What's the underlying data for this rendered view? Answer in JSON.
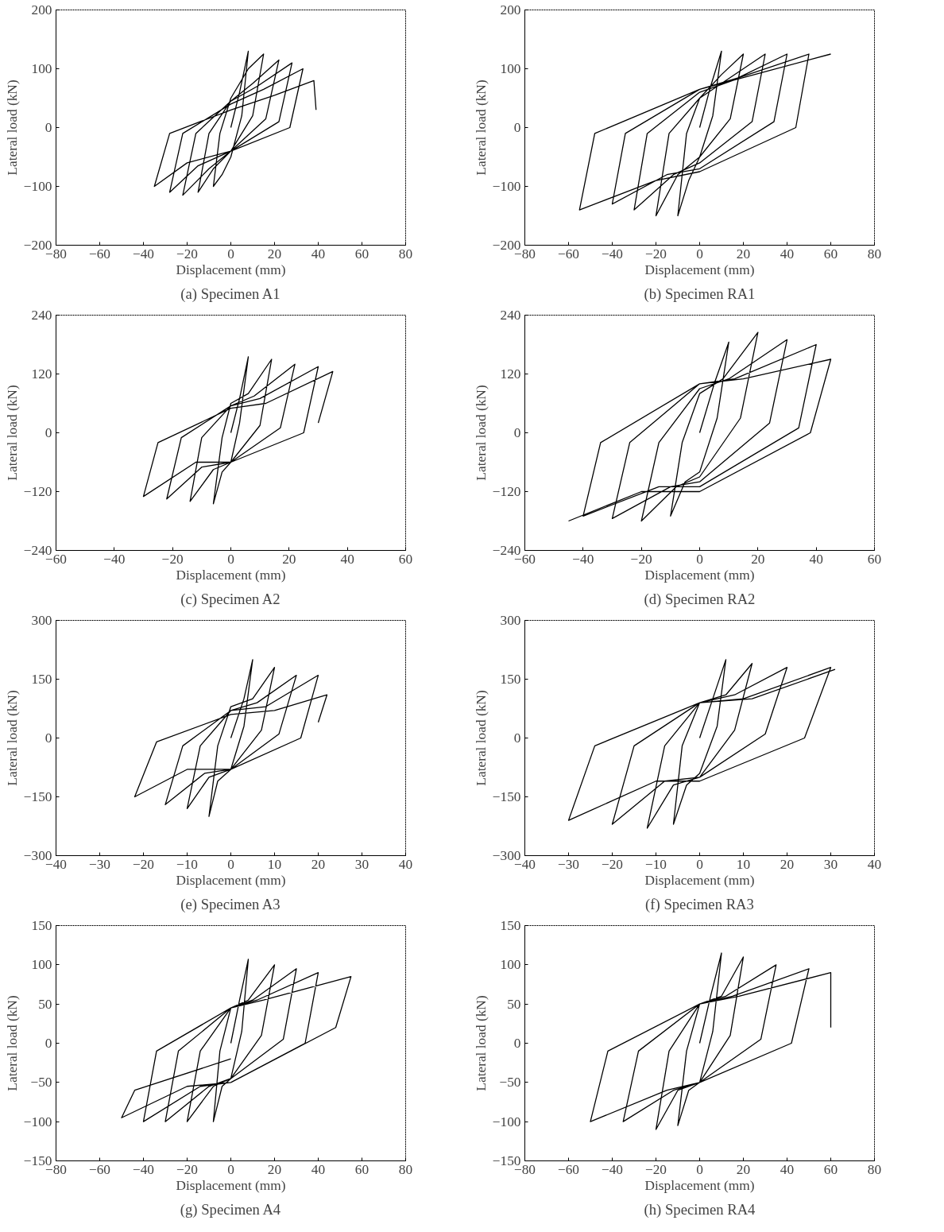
{
  "chart_data": [
    {
      "type": "line",
      "title": "(a) Specimen A1",
      "xlabel": "Displacement (mm)",
      "ylabel": "Lateral load (kN)",
      "xlim": [
        -80,
        80
      ],
      "ylim": [
        -200,
        200
      ],
      "xticks": [
        -80,
        -60,
        -40,
        -20,
        0,
        20,
        40,
        60,
        80
      ],
      "yticks": [
        -200,
        -100,
        0,
        100,
        200
      ],
      "series": [
        {
          "color": "#000000",
          "x": [
            0,
            4,
            8,
            5,
            0,
            -4,
            -8,
            -5,
            0,
            8,
            15,
            10,
            0,
            -8,
            -15,
            -10,
            0,
            10,
            22,
            16,
            0,
            -10,
            -22,
            -16,
            0,
            12,
            28,
            22,
            0,
            -15,
            -28,
            -22,
            0,
            15,
            33,
            27,
            0,
            -20,
            -35,
            -28,
            0,
            20,
            38,
            39
          ],
          "values": [
            0,
            60,
            130,
            20,
            -50,
            -80,
            -100,
            -10,
            50,
            100,
            125,
            20,
            -40,
            -70,
            -110,
            -10,
            45,
            75,
            115,
            15,
            -40,
            -70,
            -115,
            -10,
            45,
            70,
            110,
            10,
            -40,
            -65,
            -110,
            -10,
            40,
            65,
            100,
            0,
            -40,
            -60,
            -100,
            -10,
            30,
            55,
            80,
            30
          ]
        }
      ]
    },
    {
      "type": "line",
      "title": "(b) Specimen RA1",
      "xlabel": "Displacement (mm)",
      "ylabel": "Lateral load (kN)",
      "xlim": [
        -80,
        80
      ],
      "ylim": [
        -200,
        200
      ],
      "xticks": [
        -80,
        -60,
        -40,
        -20,
        0,
        20,
        40,
        60,
        80
      ],
      "yticks": [
        -200,
        -100,
        0,
        100,
        200
      ],
      "series": [
        {
          "color": "#000000",
          "x": [
            0,
            5,
            10,
            6,
            0,
            -5,
            -10,
            -6,
            0,
            10,
            20,
            14,
            0,
            -10,
            -20,
            -14,
            0,
            12,
            30,
            24,
            0,
            -12,
            -30,
            -24,
            0,
            15,
            40,
            34,
            0,
            -15,
            -40,
            -34,
            0,
            18,
            50,
            44,
            0,
            -20,
            -55,
            -48,
            0,
            25,
            60
          ],
          "values": [
            0,
            70,
            130,
            20,
            -50,
            -90,
            -150,
            -10,
            50,
            90,
            125,
            15,
            -50,
            -80,
            -150,
            -10,
            50,
            80,
            125,
            10,
            -60,
            -80,
            -140,
            -10,
            60,
            80,
            125,
            10,
            -70,
            -80,
            -130,
            -10,
            65,
            85,
            125,
            0,
            -75,
            -90,
            -140,
            -10,
            65,
            90,
            125
          ]
        }
      ]
    },
    {
      "type": "line",
      "title": "(c) Specimen A2",
      "xlabel": "Displacement (mm)",
      "ylabel": "Lateral load (kN)",
      "xlim": [
        -60,
        60
      ],
      "ylim": [
        -240,
        240
      ],
      "xticks": [
        -60,
        -40,
        -20,
        0,
        20,
        40,
        60
      ],
      "yticks": [
        -240,
        -120,
        0,
        120,
        240
      ],
      "series": [
        {
          "color": "#000000",
          "x": [
            0,
            3,
            6,
            3,
            0,
            -3,
            -6,
            -3,
            0,
            6,
            14,
            10,
            0,
            -6,
            -14,
            -10,
            0,
            8,
            22,
            17,
            0,
            -10,
            -22,
            -17,
            0,
            10,
            30,
            25,
            0,
            -12,
            -30,
            -25,
            0,
            12,
            35,
            30
          ],
          "values": [
            0,
            70,
            155,
            20,
            -60,
            -80,
            -145,
            -10,
            60,
            80,
            150,
            15,
            -60,
            -75,
            -140,
            -10,
            55,
            75,
            140,
            10,
            -60,
            -70,
            -135,
            -10,
            55,
            70,
            135,
            0,
            -60,
            -60,
            -130,
            -20,
            50,
            60,
            125,
            20
          ]
        }
      ]
    },
    {
      "type": "line",
      "title": "(d) Specimen RA2",
      "xlabel": "Displacement (mm)",
      "ylabel": "Lateral load (kN)",
      "xlim": [
        -60,
        60
      ],
      "ylim": [
        -240,
        240
      ],
      "xticks": [
        -60,
        -40,
        -20,
        0,
        20,
        40,
        60
      ],
      "yticks": [
        -240,
        -120,
        0,
        120,
        240
      ],
      "series": [
        {
          "color": "#000000",
          "x": [
            0,
            5,
            10,
            6,
            0,
            -5,
            -10,
            -6,
            0,
            8,
            20,
            14,
            0,
            -8,
            -20,
            -14,
            0,
            10,
            30,
            24,
            0,
            -10,
            -30,
            -24,
            0,
            12,
            40,
            34,
            0,
            -14,
            -40,
            -34,
            0,
            15,
            45,
            38,
            0,
            -20,
            -45
          ],
          "values": [
            0,
            100,
            185,
            30,
            -80,
            -100,
            -170,
            -20,
            80,
            110,
            205,
            30,
            -90,
            -110,
            -180,
            -20,
            90,
            110,
            190,
            20,
            -100,
            -110,
            -175,
            -20,
            100,
            110,
            180,
            10,
            -110,
            -110,
            -170,
            -20,
            100,
            110,
            150,
            0,
            -120,
            -120,
            -180
          ]
        }
      ]
    },
    {
      "type": "line",
      "title": "(e) Specimen A3",
      "xlabel": "Displacement (mm)",
      "ylabel": "Lateral load (kN)",
      "xlim": [
        -40,
        40
      ],
      "ylim": [
        -300,
        300
      ],
      "xticks": [
        -40,
        -30,
        -20,
        -10,
        0,
        10,
        20,
        30,
        40
      ],
      "yticks": [
        -300,
        -150,
        0,
        150,
        300
      ],
      "series": [
        {
          "color": "#000000",
          "x": [
            0,
            3,
            5,
            3,
            0,
            -3,
            -5,
            -3,
            0,
            5,
            10,
            7,
            0,
            -5,
            -10,
            -7,
            0,
            6,
            15,
            11,
            0,
            -6,
            -15,
            -11,
            0,
            8,
            20,
            16,
            0,
            -10,
            -22,
            -17,
            0,
            10,
            22,
            20
          ],
          "values": [
            0,
            100,
            200,
            30,
            -80,
            -110,
            -200,
            -20,
            80,
            100,
            180,
            20,
            -80,
            -100,
            -180,
            -20,
            70,
            90,
            160,
            10,
            -80,
            -90,
            -170,
            -20,
            70,
            80,
            160,
            0,
            -80,
            -80,
            -150,
            -10,
            60,
            70,
            110,
            40
          ]
        }
      ]
    },
    {
      "type": "line",
      "title": "(f) Specimen RA3",
      "xlabel": "Displacement (mm)",
      "ylabel": "Lateral load (kN)",
      "xlim": [
        -40,
        40
      ],
      "ylim": [
        -300,
        300
      ],
      "xticks": [
        -40,
        -30,
        -20,
        -10,
        0,
        10,
        20,
        30,
        40
      ],
      "yticks": [
        -300,
        -150,
        0,
        150,
        300
      ],
      "series": [
        {
          "color": "#000000",
          "x": [
            0,
            3,
            6,
            4,
            0,
            -3,
            -6,
            -4,
            0,
            6,
            12,
            8,
            0,
            -6,
            -12,
            -8,
            0,
            8,
            20,
            15,
            0,
            -8,
            -20,
            -15,
            0,
            10,
            30,
            24,
            0,
            -10,
            -30,
            -24,
            0,
            12,
            31
          ],
          "values": [
            0,
            100,
            200,
            30,
            -90,
            -120,
            -220,
            -20,
            90,
            110,
            190,
            20,
            -100,
            -120,
            -230,
            -20,
            90,
            110,
            180,
            10,
            -100,
            -110,
            -220,
            -20,
            90,
            100,
            180,
            0,
            -110,
            -110,
            -210,
            -20,
            90,
            100,
            175
          ]
        }
      ]
    },
    {
      "type": "line",
      "title": "(g) Specimen A4",
      "xlabel": "Displacement (mm)",
      "ylabel": "Lateral load (kN)",
      "xlim": [
        -80,
        80
      ],
      "ylim": [
        -150,
        150
      ],
      "xticks": [
        -80,
        -60,
        -40,
        -20,
        0,
        20,
        40,
        60,
        80
      ],
      "yticks": [
        -150,
        -100,
        -50,
        0,
        50,
        100,
        150
      ],
      "series": [
        {
          "color": "#000000",
          "x": [
            0,
            4,
            8,
            5,
            0,
            -4,
            -8,
            -5,
            0,
            8,
            20,
            14,
            0,
            -8,
            -20,
            -14,
            0,
            10,
            30,
            24,
            0,
            -10,
            -30,
            -24,
            0,
            12,
            40,
            34,
            0,
            -14,
            -40,
            -34,
            0,
            15,
            55,
            48,
            0,
            -20,
            -50,
            -44,
            0
          ],
          "values": [
            0,
            55,
            107,
            15,
            -45,
            -55,
            -100,
            -10,
            45,
            55,
            100,
            10,
            -45,
            -55,
            -100,
            -10,
            45,
            55,
            95,
            5,
            -45,
            -55,
            -100,
            -10,
            45,
            55,
            90,
            0,
            -50,
            -55,
            -100,
            -10,
            45,
            55,
            85,
            20,
            -50,
            -55,
            -95,
            -60,
            -20
          ]
        }
      ]
    },
    {
      "type": "line",
      "title": "(h) Specimen RA4",
      "xlabel": "Displacement (mm)",
      "ylabel": "Lateral load (kN)",
      "xlim": [
        -80,
        80
      ],
      "ylim": [
        -150,
        150
      ],
      "xticks": [
        -80,
        -60,
        -40,
        -20,
        0,
        20,
        40,
        60,
        80
      ],
      "yticks": [
        -150,
        -100,
        -50,
        0,
        50,
        100,
        150
      ],
      "series": [
        {
          "color": "#000000",
          "x": [
            0,
            5,
            10,
            6,
            0,
            -5,
            -10,
            -6,
            0,
            10,
            20,
            14,
            0,
            -10,
            -20,
            -14,
            0,
            12,
            35,
            28,
            0,
            -12,
            -35,
            -28,
            0,
            15,
            50,
            42,
            0,
            -15,
            -50,
            -42,
            0,
            18,
            60,
            60
          ],
          "values": [
            0,
            60,
            115,
            15,
            -50,
            -60,
            -105,
            -10,
            50,
            60,
            110,
            10,
            -50,
            -60,
            -110,
            -10,
            50,
            60,
            100,
            5,
            -50,
            -60,
            -100,
            -10,
            50,
            60,
            95,
            0,
            -50,
            -60,
            -100,
            -10,
            50,
            60,
            90,
            20
          ]
        }
      ]
    }
  ]
}
